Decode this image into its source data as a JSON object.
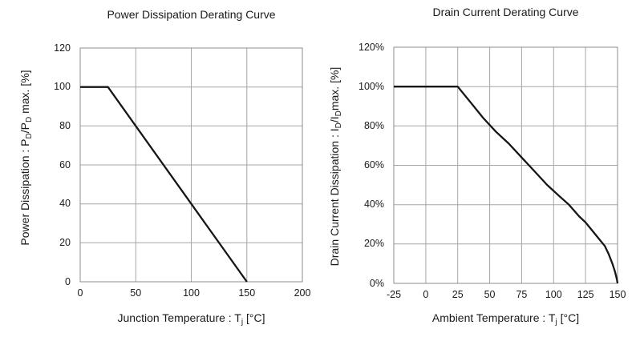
{
  "colors": {
    "background": "#ffffff",
    "grid": "#a6a6a6",
    "plot_border": "#8c8c8c",
    "curve": "#161616",
    "text": "#1a1a1a"
  },
  "chart_data": [
    {
      "id": "power-dissipation-derating",
      "type": "line",
      "title": "Power Dissipation Derating Curve",
      "xlabel": "Junction Temperature : Tj [°C]",
      "ylabel": "Power Dissipation : PD/PD max. [%]",
      "xlabel_segments": [
        {
          "t": "Junction Temperature : T"
        },
        {
          "t": "j",
          "sub": true
        },
        {
          "t": " [°C]"
        }
      ],
      "ylabel_segments": [
        {
          "t": "Power Dissipation : P"
        },
        {
          "t": "D",
          "sub": true
        },
        {
          "t": "/P"
        },
        {
          "t": "D",
          "sub": true
        },
        {
          "t": " max. [%]"
        }
      ],
      "xlim": [
        0,
        200
      ],
      "ylim": [
        0,
        120
      ],
      "xticks": [
        0,
        50,
        100,
        150,
        200
      ],
      "xtick_labels": [
        "0",
        "50",
        "100",
        "150",
        "200"
      ],
      "yticks": [
        0,
        20,
        40,
        60,
        80,
        100,
        120
      ],
      "ytick_labels": [
        "0",
        "20",
        "40",
        "60",
        "80",
        "100",
        "120"
      ],
      "grid": true,
      "legend": "none",
      "series": [
        {
          "name": "power-derating-curve",
          "points": [
            [
              0,
              100
            ],
            [
              25,
              100
            ],
            [
              150,
              0
            ]
          ]
        }
      ]
    },
    {
      "id": "drain-current-derating",
      "type": "line",
      "title": "Drain Current Derating Curve",
      "xlabel": "Ambient Temperature : Tj [°C]",
      "ylabel": "Drain Current Dissipation : ID/IDmax. [%]",
      "xlabel_segments": [
        {
          "t": "Ambient Temperature : T"
        },
        {
          "t": "j",
          "sub": true
        },
        {
          "t": " [°C]"
        }
      ],
      "ylabel_segments": [
        {
          "t": "Drain Current Dissipation : I"
        },
        {
          "t": "D",
          "sub": true
        },
        {
          "t": "/I"
        },
        {
          "t": "D",
          "sub": true
        },
        {
          "t": "max. [%]"
        }
      ],
      "xlim": [
        -25,
        150
      ],
      "ylim": [
        0,
        120
      ],
      "xticks": [
        -25,
        0,
        25,
        50,
        75,
        100,
        125,
        150
      ],
      "xtick_labels": [
        "-25",
        "0",
        "25",
        "50",
        "75",
        "100",
        "125",
        "150"
      ],
      "yticks": [
        0,
        20,
        40,
        60,
        80,
        100,
        120
      ],
      "ytick_labels": [
        "0%",
        "20%",
        "40%",
        "60%",
        "80%",
        "100%",
        "120%"
      ],
      "grid": true,
      "legend": "none",
      "series": [
        {
          "name": "drain-current-derating-curve",
          "points": [
            [
              -25,
              100
            ],
            [
              25,
              100
            ],
            [
              35,
              92
            ],
            [
              45,
              84
            ],
            [
              55,
              77
            ],
            [
              65,
              71
            ],
            [
              75,
              64
            ],
            [
              85,
              57
            ],
            [
              95,
              50
            ],
            [
              105,
              44
            ],
            [
              112,
              40
            ],
            [
              120,
              34
            ],
            [
              125,
              31
            ],
            [
              130,
              27
            ],
            [
              135,
              23
            ],
            [
              140,
              19
            ],
            [
              143,
              15
            ],
            [
              146,
              10
            ],
            [
              148,
              6
            ],
            [
              149.5,
              2
            ],
            [
              150,
              0
            ]
          ]
        }
      ]
    }
  ]
}
